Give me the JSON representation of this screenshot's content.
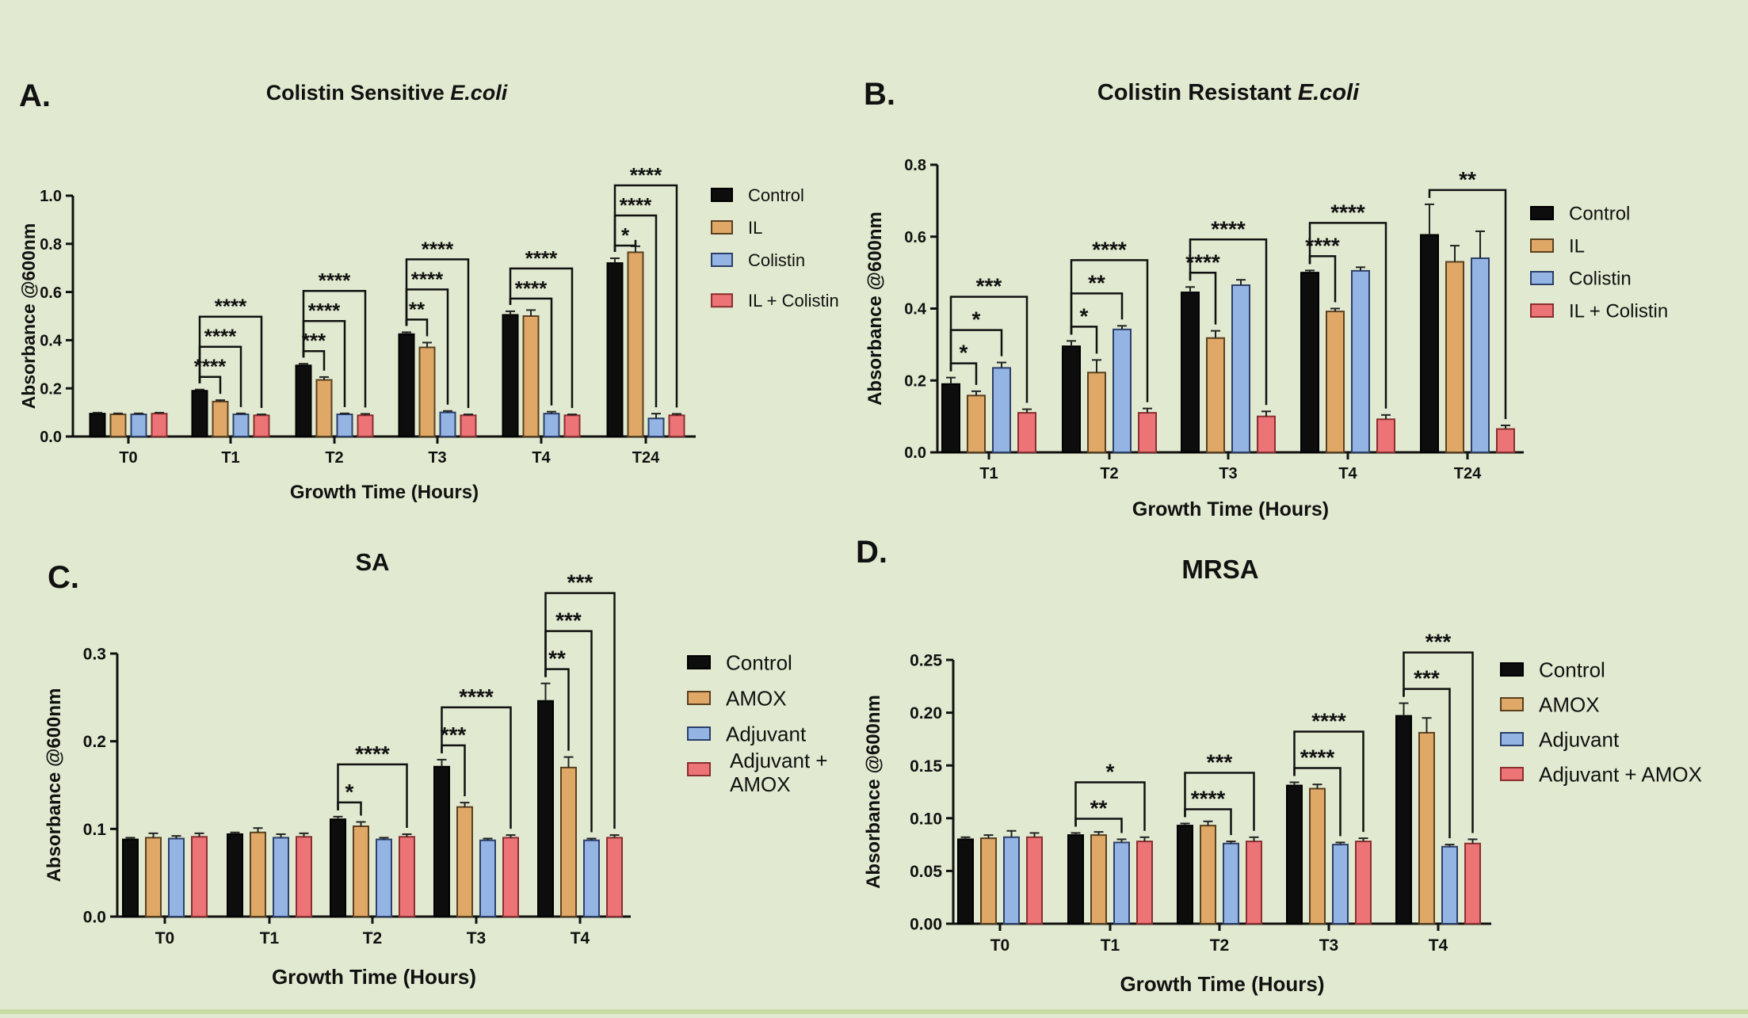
{
  "colors": {
    "background": "#e1ead0",
    "control": "#0d0d0d",
    "il_amox": "#e0a866",
    "colistin_adjuvant": "#94b4e4",
    "combo": "#ec7476"
  },
  "chart_data": [
    {
      "panel": "A.",
      "type": "bar",
      "title": "Colistin Sensitive",
      "title_italic": "E.coli",
      "xlabel": "Growth Time (Hours)",
      "ylabel": "Absorbance @600nm",
      "ylim": [
        0,
        1.0
      ],
      "yticks": [
        "0.0",
        "0.2",
        "0.4",
        "0.6",
        "0.8",
        "1.0"
      ],
      "categories": [
        "T0",
        "T1",
        "T2",
        "T3",
        "T4",
        "T24"
      ],
      "series": [
        {
          "name": "Control",
          "values": [
            0.095,
            0.19,
            0.295,
            0.425,
            0.505,
            0.72
          ],
          "errors": [
            0.004,
            0.005,
            0.007,
            0.008,
            0.015,
            0.02
          ]
        },
        {
          "name": "IL",
          "values": [
            0.092,
            0.145,
            0.235,
            0.37,
            0.5,
            0.765
          ],
          "errors": [
            0.004,
            0.006,
            0.012,
            0.02,
            0.025,
            0.025
          ]
        },
        {
          "name": "Colistin",
          "values": [
            0.092,
            0.092,
            0.092,
            0.1,
            0.095,
            0.075
          ],
          "errors": [
            0.004,
            0.004,
            0.004,
            0.006,
            0.008,
            0.02
          ]
        },
        {
          "name": "IL + Colistin",
          "values": [
            0.095,
            0.088,
            0.088,
            0.088,
            0.088,
            0.088
          ],
          "errors": [
            0.004,
            0.004,
            0.006,
            0.004,
            0.004,
            0.006
          ]
        }
      ],
      "legend_position": "right",
      "annotations": [
        {
          "category": "T1",
          "label": "****",
          "compare": 1
        },
        {
          "category": "T1",
          "label": "****",
          "compare": 2
        },
        {
          "category": "T1",
          "label": "****",
          "compare": 3
        },
        {
          "category": "T2",
          "label": "***",
          "compare": 1
        },
        {
          "category": "T2",
          "label": "****",
          "compare": 2
        },
        {
          "category": "T2",
          "label": "****",
          "compare": 3
        },
        {
          "category": "T3",
          "label": "**",
          "compare": 1
        },
        {
          "category": "T3",
          "label": "****",
          "compare": 2
        },
        {
          "category": "T3",
          "label": "****",
          "compare": 3
        },
        {
          "category": "T4",
          "label": "****",
          "compare": 2
        },
        {
          "category": "T4",
          "label": "****",
          "compare": 3
        },
        {
          "category": "T24",
          "label": "*",
          "compare": 1
        },
        {
          "category": "T24",
          "label": "****",
          "compare": 2
        },
        {
          "category": "T24",
          "label": "****",
          "compare": 3
        }
      ]
    },
    {
      "panel": "B.",
      "type": "bar",
      "title": "Colistin Resistant",
      "title_italic": "E.coli",
      "xlabel": "Growth Time (Hours)",
      "ylabel": "Absorbance @600nm",
      "ylim": [
        0,
        0.8
      ],
      "yticks": [
        "0.0",
        "0.2",
        "0.4",
        "0.6",
        "0.8"
      ],
      "categories": [
        "T1",
        "T2",
        "T3",
        "T4",
        "T24"
      ],
      "series": [
        {
          "name": "Control",
          "values": [
            0.19,
            0.295,
            0.445,
            0.5,
            0.605
          ],
          "errors": [
            0.018,
            0.015,
            0.015,
            0.006,
            0.085
          ]
        },
        {
          "name": "IL",
          "values": [
            0.158,
            0.222,
            0.318,
            0.392,
            0.53
          ],
          "errors": [
            0.012,
            0.035,
            0.02,
            0.008,
            0.045
          ]
        },
        {
          "name": "Colistin",
          "values": [
            0.235,
            0.342,
            0.465,
            0.505,
            0.54
          ],
          "errors": [
            0.015,
            0.01,
            0.015,
            0.01,
            0.075
          ]
        },
        {
          "name": "IL + Colistin",
          "values": [
            0.11,
            0.11,
            0.1,
            0.092,
            0.065
          ],
          "errors": [
            0.01,
            0.012,
            0.014,
            0.012,
            0.01
          ]
        }
      ],
      "legend_position": "right",
      "annotations": [
        {
          "category": "T1",
          "label": "*",
          "compare": 1
        },
        {
          "category": "T1",
          "label": "*",
          "compare": 2
        },
        {
          "category": "T1",
          "label": "***",
          "compare": 3
        },
        {
          "category": "T2",
          "label": "*",
          "compare": 1
        },
        {
          "category": "T2",
          "label": "**",
          "compare": 2
        },
        {
          "category": "T2",
          "label": "****",
          "compare": 3
        },
        {
          "category": "T3",
          "label": "****",
          "compare": 1
        },
        {
          "category": "T3",
          "label": "****",
          "compare": 3
        },
        {
          "category": "T4",
          "label": "****",
          "compare": 1
        },
        {
          "category": "T4",
          "label": "****",
          "compare": 3
        },
        {
          "category": "T24",
          "label": "**",
          "compare": 3
        }
      ]
    },
    {
      "panel": "C.",
      "type": "bar",
      "title": "SA",
      "title_italic": "",
      "xlabel": "Growth Time (Hours)",
      "ylabel": "Absorbance @600nm",
      "ylim": [
        0,
        0.3
      ],
      "yticks": [
        "0.0",
        "0.1",
        "0.2",
        "0.3"
      ],
      "categories": [
        "T0",
        "T1",
        "T2",
        "T3",
        "T4"
      ],
      "series": [
        {
          "name": "Control",
          "values": [
            0.088,
            0.094,
            0.111,
            0.171,
            0.246
          ],
          "errors": [
            0.002,
            0.002,
            0.003,
            0.008,
            0.02
          ]
        },
        {
          "name": "AMOX",
          "values": [
            0.09,
            0.096,
            0.103,
            0.125,
            0.17
          ],
          "errors": [
            0.005,
            0.005,
            0.005,
            0.005,
            0.012
          ]
        },
        {
          "name": "Adjuvant",
          "values": [
            0.089,
            0.09,
            0.088,
            0.087,
            0.087
          ],
          "errors": [
            0.003,
            0.004,
            0.002,
            0.002,
            0.002
          ]
        },
        {
          "name": "Adjuvant + AMOX",
          "values": [
            0.091,
            0.091,
            0.091,
            0.09,
            0.09
          ],
          "errors": [
            0.004,
            0.004,
            0.003,
            0.003,
            0.003
          ]
        }
      ],
      "legend_position": "right",
      "annotations": [
        {
          "category": "T2",
          "label": "*",
          "compare": 1
        },
        {
          "category": "T2",
          "label": "****",
          "compare": 3
        },
        {
          "category": "T3",
          "label": "***",
          "compare": 1
        },
        {
          "category": "T3",
          "label": "****",
          "compare": 3
        },
        {
          "category": "T4",
          "label": "**",
          "compare": 1
        },
        {
          "category": "T4",
          "label": "***",
          "compare": 2
        },
        {
          "category": "T4",
          "label": "***",
          "compare": 3
        }
      ]
    },
    {
      "panel": "D.",
      "type": "bar",
      "title": "MRSA",
      "title_italic": "",
      "xlabel": "Growth Time (Hours)",
      "ylabel": "Absorbance @600nm",
      "ylim": [
        0,
        0.25
      ],
      "yticks": [
        "0.00",
        "0.05",
        "0.10",
        "0.15",
        "0.20",
        "0.25"
      ],
      "categories": [
        "T0",
        "T1",
        "T2",
        "T3",
        "T4"
      ],
      "series": [
        {
          "name": "Control",
          "values": [
            0.08,
            0.084,
            0.093,
            0.131,
            0.197
          ],
          "errors": [
            0.002,
            0.002,
            0.002,
            0.003,
            0.012
          ]
        },
        {
          "name": "AMOX",
          "values": [
            0.081,
            0.084,
            0.093,
            0.128,
            0.181
          ],
          "errors": [
            0.003,
            0.003,
            0.004,
            0.004,
            0.014
          ]
        },
        {
          "name": "Adjuvant",
          "values": [
            0.082,
            0.077,
            0.076,
            0.075,
            0.073
          ],
          "errors": [
            0.006,
            0.003,
            0.002,
            0.002,
            0.002
          ]
        },
        {
          "name": "Adjuvant + AMOX",
          "values": [
            0.082,
            0.078,
            0.078,
            0.078,
            0.076
          ],
          "errors": [
            0.004,
            0.004,
            0.004,
            0.003,
            0.004
          ]
        }
      ],
      "legend_position": "right",
      "annotations": [
        {
          "category": "T1",
          "label": "**",
          "compare": 2
        },
        {
          "category": "T1",
          "label": "*",
          "compare": 3
        },
        {
          "category": "T2",
          "label": "****",
          "compare": 2
        },
        {
          "category": "T2",
          "label": "***",
          "compare": 3
        },
        {
          "category": "T3",
          "label": "****",
          "compare": 2
        },
        {
          "category": "T3",
          "label": "****",
          "compare": 3
        },
        {
          "category": "T4",
          "label": "***",
          "compare": 2
        },
        {
          "category": "T4",
          "label": "***",
          "compare": 3
        }
      ]
    }
  ]
}
